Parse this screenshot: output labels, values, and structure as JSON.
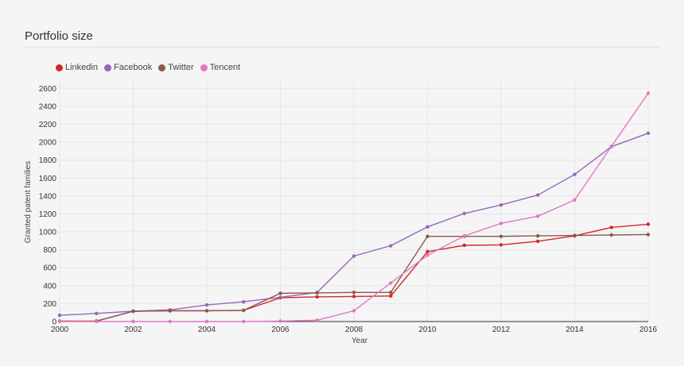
{
  "panel": {
    "title": "Portfolio size"
  },
  "chart_data": {
    "type": "line",
    "title": "Portfolio size",
    "xlabel": "Year",
    "ylabel": "Granted patent families",
    "xlim": [
      2000,
      2016
    ],
    "ylim": [
      0,
      2700
    ],
    "xticks": [
      2000,
      2002,
      2004,
      2006,
      2008,
      2010,
      2012,
      2014,
      2016
    ],
    "yticks": [
      0,
      200,
      400,
      600,
      800,
      1000,
      1200,
      1400,
      1600,
      1800,
      2000,
      2200,
      2400,
      2600
    ],
    "legend_position": "top-left",
    "x": [
      2000,
      2001,
      2002,
      2003,
      2004,
      2005,
      2006,
      2007,
      2008,
      2009,
      2010,
      2011,
      2012,
      2013,
      2014,
      2015,
      2016
    ],
    "series": [
      {
        "name": "Linkedin",
        "color": "#d62728",
        "x": [
          2000,
          2001,
          2002,
          2003,
          2004,
          2005,
          2006,
          2007,
          2008,
          2009,
          2010,
          2011,
          2012,
          2013,
          2014,
          2015,
          2016
        ],
        "values": [
          5,
          5,
          115,
          120,
          120,
          125,
          265,
          275,
          280,
          285,
          780,
          850,
          855,
          895,
          955,
          1050,
          1085
        ]
      },
      {
        "name": "Facebook",
        "color": "#9467bd",
        "x": [
          2000,
          2001,
          2002,
          2003,
          2004,
          2005,
          2006,
          2007,
          2008,
          2009,
          2010,
          2011,
          2012,
          2013,
          2014,
          2015,
          2016
        ],
        "values": [
          70,
          90,
          115,
          130,
          185,
          220,
          270,
          325,
          730,
          845,
          1055,
          1205,
          1300,
          1410,
          1640,
          1950,
          2100
        ]
      },
      {
        "name": "Twitter",
        "color": "#8c564b",
        "x": [
          2001,
          2002,
          2003,
          2004,
          2005,
          2006,
          2007,
          2008,
          2009,
          2010,
          2011,
          2012,
          2013,
          2014,
          2015,
          2016
        ],
        "values": [
          5,
          115,
          120,
          120,
          125,
          315,
          320,
          325,
          325,
          950,
          950,
          950,
          955,
          960,
          965,
          970
        ]
      },
      {
        "name": "Tencent",
        "color": "#e377c2",
        "x": [
          2000,
          2001,
          2002,
          2003,
          2004,
          2005,
          2006,
          2007,
          2008,
          2009,
          2010,
          2011,
          2012,
          2013,
          2014,
          2015,
          2016
        ],
        "values": [
          0,
          0,
          0,
          0,
          0,
          0,
          5,
          15,
          120,
          430,
          740,
          955,
          1095,
          1175,
          1355,
          1955,
          2545
        ]
      }
    ]
  }
}
